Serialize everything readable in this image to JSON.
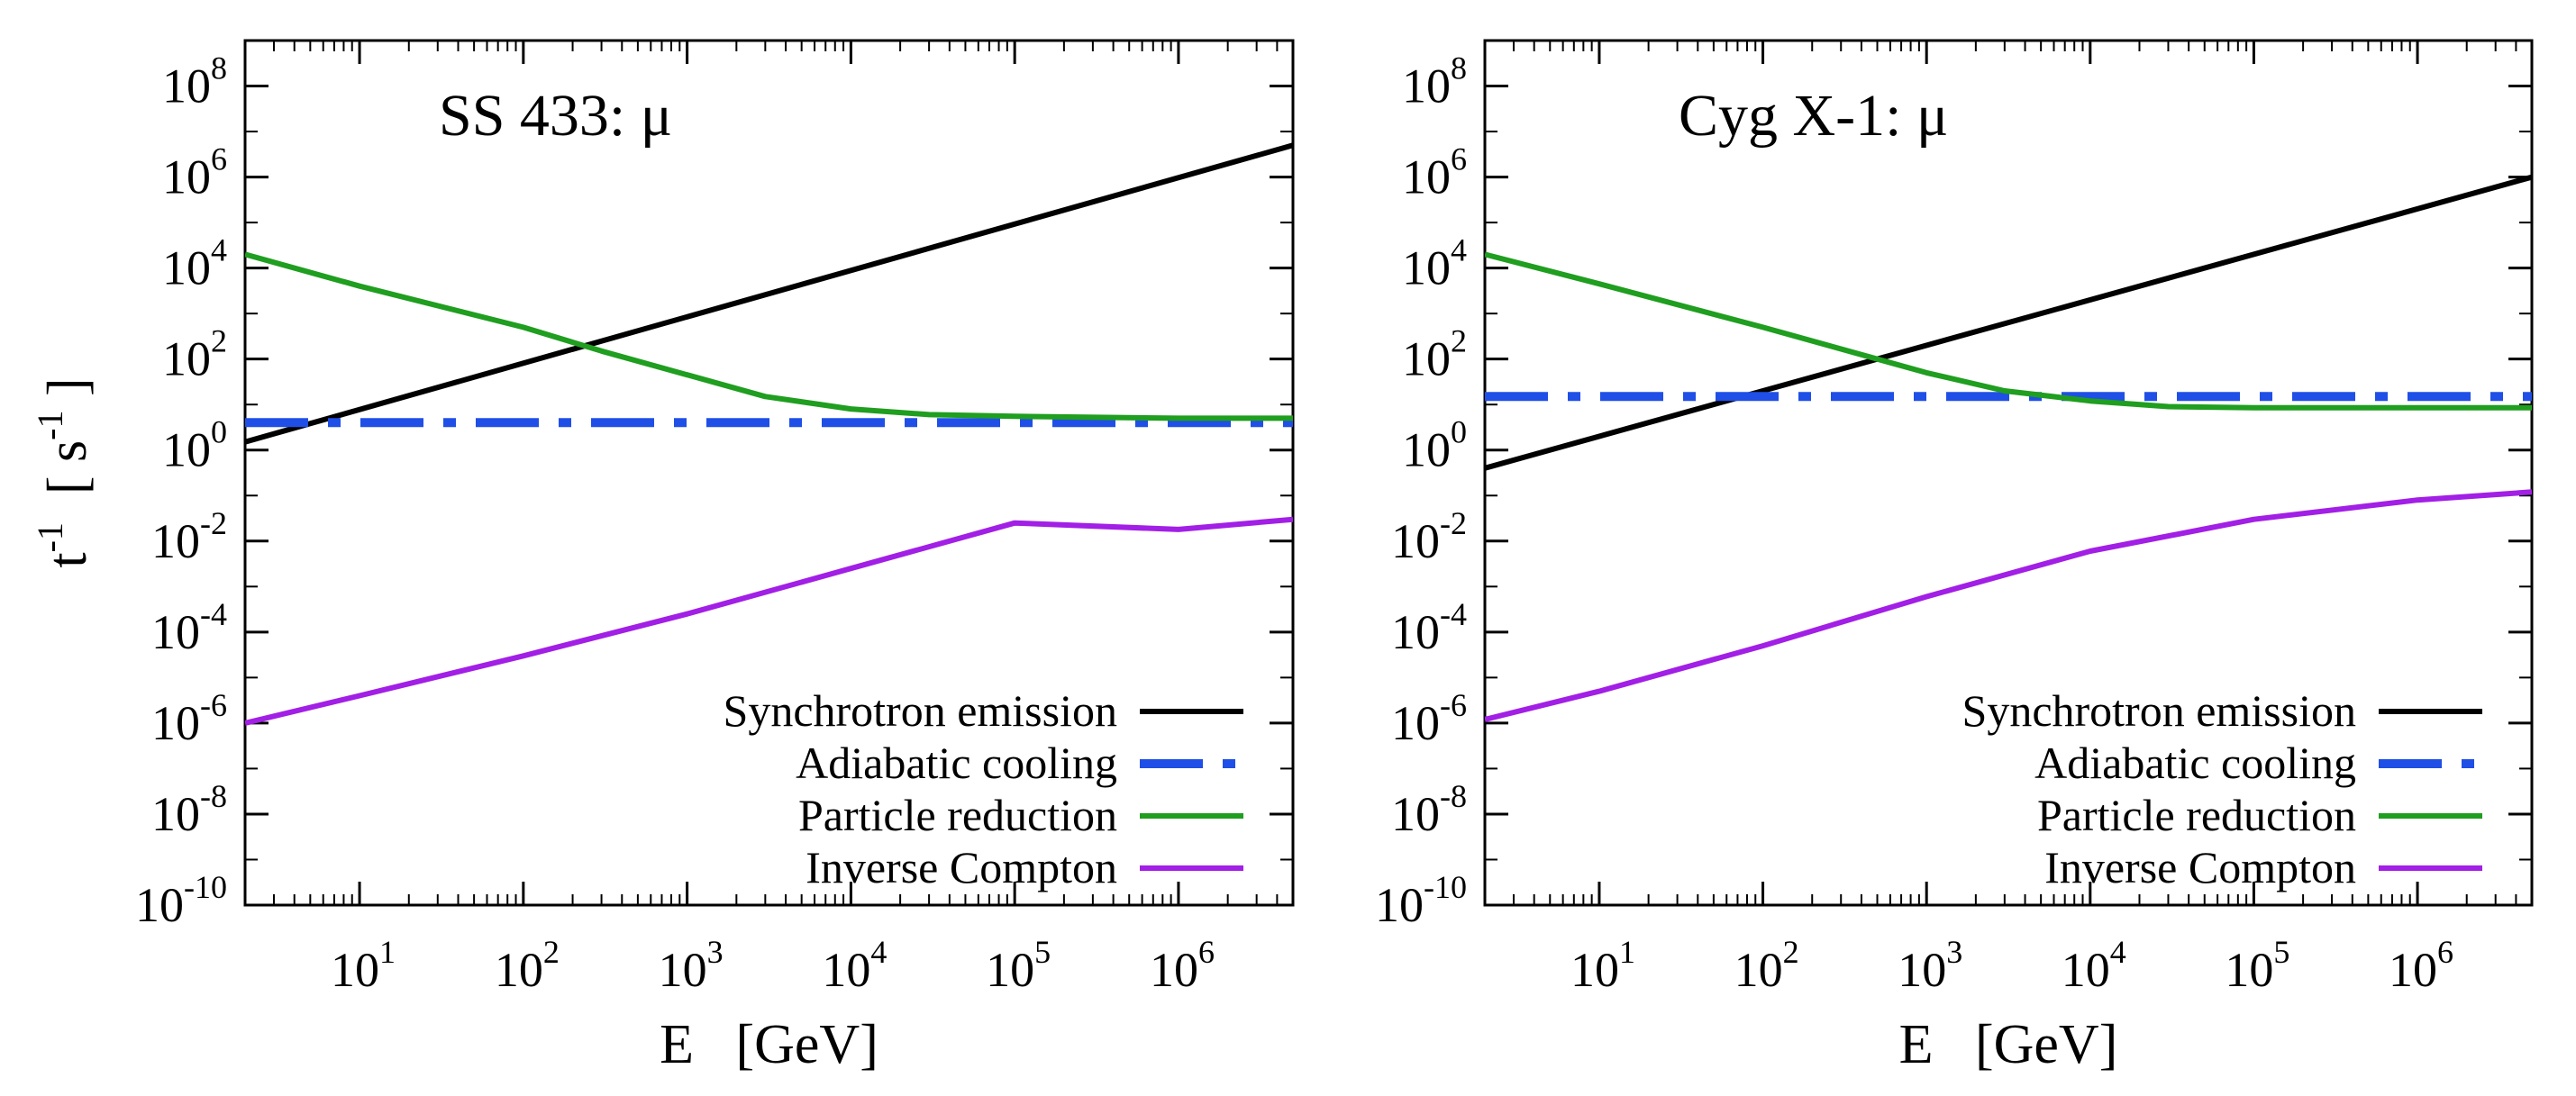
{
  "chart_data": [
    {
      "type": "line",
      "title": "SS 433: μ",
      "xlabel": "E   [GeV]",
      "ylabel": "t^-1 [ s^-1 ]",
      "xscale": "log",
      "yscale": "log",
      "xlim": [
        2,
        5000000
      ],
      "ylim": [
        1e-10,
        1000000000.0
      ],
      "xticks": [
        {
          "base": "10",
          "exp": "1"
        },
        {
          "base": "10",
          "exp": "2"
        },
        {
          "base": "10",
          "exp": "3"
        },
        {
          "base": "10",
          "exp": "4"
        },
        {
          "base": "10",
          "exp": "5"
        },
        {
          "base": "10",
          "exp": "6"
        }
      ],
      "yticks": [
        {
          "base": "10",
          "exp": "-10"
        },
        {
          "base": "10",
          "exp": "-8"
        },
        {
          "base": "10",
          "exp": "-6"
        },
        {
          "base": "10",
          "exp": "-4"
        },
        {
          "base": "10",
          "exp": "-2"
        },
        {
          "base": "10",
          "exp": "0"
        },
        {
          "base": "10",
          "exp": "2"
        },
        {
          "base": "10",
          "exp": "4"
        },
        {
          "base": "10",
          "exp": "6"
        },
        {
          "base": "10",
          "exp": "8"
        }
      ],
      "legend_position": "bottom-right",
      "series": [
        {
          "name": "Synchrotron emission",
          "color": "#000000",
          "style": "solid",
          "x": [
            2,
            5000000
          ],
          "y": [
            1.5,
            5000000
          ]
        },
        {
          "name": "Adiabatic cooling",
          "color": "#1f4fe6",
          "style": "dashdot",
          "x": [
            2,
            5000000
          ],
          "y": [
            4,
            4
          ]
        },
        {
          "name": "Particle reduction",
          "color": "#1f9e1f",
          "style": "solid",
          "x": [
            2,
            10,
            100,
            300,
            1000,
            3000,
            10000,
            30000,
            100000,
            1000000,
            5000000
          ],
          "y": [
            20000,
            4000,
            500,
            150,
            45,
            15,
            8,
            6,
            5.5,
            5,
            5
          ]
        },
        {
          "name": "Inverse Compton",
          "color": "#a21fe6",
          "style": "solid",
          "x": [
            2,
            10,
            100,
            1000,
            10000,
            100000,
            1000000,
            5000000
          ],
          "y": [
            1e-06,
            4e-06,
            3e-05,
            0.00025,
            0.0025,
            0.025,
            0.018,
            0.03
          ]
        }
      ]
    },
    {
      "type": "line",
      "title": "Cyg X-1: μ",
      "xlabel": "E   [GeV]",
      "ylabel": "",
      "xscale": "log",
      "yscale": "log",
      "xlim": [
        2,
        5000000
      ],
      "ylim": [
        1e-10,
        1000000000.0
      ],
      "xticks": [
        {
          "base": "10",
          "exp": "1"
        },
        {
          "base": "10",
          "exp": "2"
        },
        {
          "base": "10",
          "exp": "3"
        },
        {
          "base": "10",
          "exp": "4"
        },
        {
          "base": "10",
          "exp": "5"
        },
        {
          "base": "10",
          "exp": "6"
        }
      ],
      "yticks": [
        {
          "base": "10",
          "exp": "-10"
        },
        {
          "base": "10",
          "exp": "-8"
        },
        {
          "base": "10",
          "exp": "-6"
        },
        {
          "base": "10",
          "exp": "-4"
        },
        {
          "base": "10",
          "exp": "-2"
        },
        {
          "base": "10",
          "exp": "0"
        },
        {
          "base": "10",
          "exp": "2"
        },
        {
          "base": "10",
          "exp": "4"
        },
        {
          "base": "10",
          "exp": "6"
        },
        {
          "base": "10",
          "exp": "8"
        }
      ],
      "legend_position": "bottom-right",
      "series": [
        {
          "name": "Synchrotron emission",
          "color": "#000000",
          "style": "solid",
          "x": [
            2,
            5000000
          ],
          "y": [
            0.4,
            1000000
          ]
        },
        {
          "name": "Adiabatic cooling",
          "color": "#1f4fe6",
          "style": "dashdot",
          "x": [
            2,
            5000000
          ],
          "y": [
            15,
            15
          ]
        },
        {
          "name": "Particle reduction",
          "color": "#1f9e1f",
          "style": "solid",
          "x": [
            2,
            10,
            100,
            500,
            1000,
            3000,
            10000,
            30000,
            100000,
            1000000,
            5000000
          ],
          "y": [
            20000,
            4500,
            500,
            100,
            50,
            20,
            12,
            9,
            8.5,
            8.5,
            8.5
          ]
        },
        {
          "name": "Inverse Compton",
          "color": "#a21fe6",
          "style": "solid",
          "x": [
            2,
            10,
            100,
            1000,
            10000,
            100000,
            1000000,
            5000000
          ],
          "y": [
            1.2e-06,
            5e-06,
            5e-05,
            0.0006,
            0.006,
            0.03,
            0.08,
            0.12
          ]
        }
      ]
    }
  ]
}
